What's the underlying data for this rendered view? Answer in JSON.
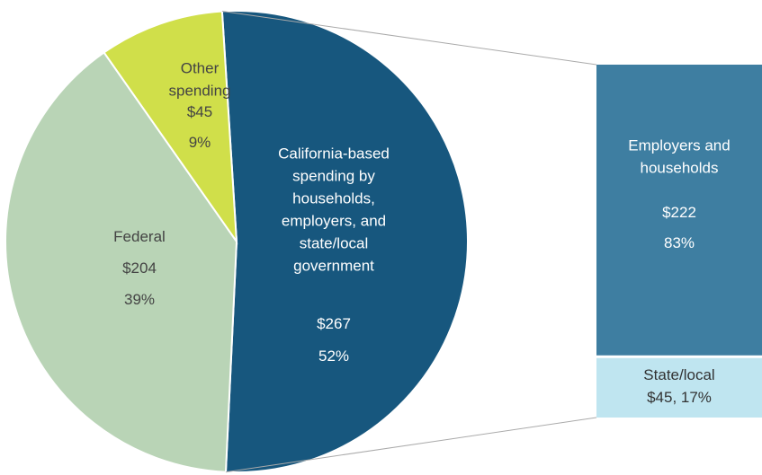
{
  "chart_data": [
    {
      "type": "pie",
      "categories": [
        "California-based\nspending by\nhouseholds,\nemployers, and\nstate/local\ngovernment",
        "Federal",
        "Other\nspending"
      ],
      "values": [
        267,
        204,
        45
      ],
      "value_labels": [
        "$267",
        "$204",
        "$45"
      ],
      "percents": [
        52,
        39,
        9
      ],
      "percent_labels": [
        "52%",
        "39%",
        "9%"
      ],
      "colors": [
        "#17577e",
        "#b9d4b6",
        "#d0df4a"
      ]
    },
    {
      "type": "bar",
      "segments": [
        {
          "name": "Employers and\nhouseholds",
          "value": 222,
          "value_label": "$222",
          "percent": 83,
          "percent_label": "83%",
          "color": "#3e7ea1"
        },
        {
          "name": "State/local",
          "value": 45,
          "value_label": "$45, 17%",
          "percent": 17,
          "color": "#bfe5f0"
        }
      ]
    }
  ]
}
